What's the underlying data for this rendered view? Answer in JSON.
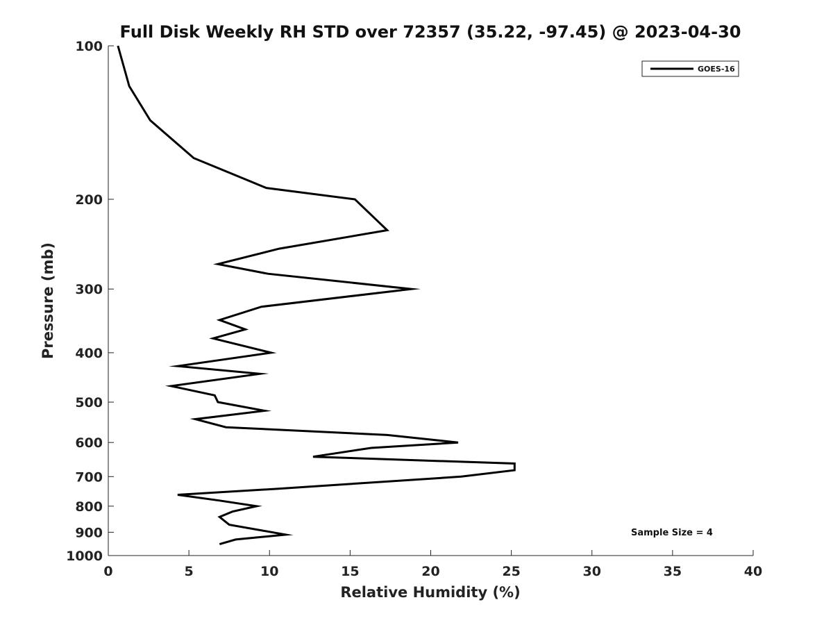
{
  "chart_data": {
    "type": "line",
    "title": "Full Disk Weekly RH STD over 72357 (35.22, -97.45) @ 2023-04-30",
    "xlabel": "Relative Humidity (%)",
    "ylabel": "Pressure (mb)",
    "xlim": [
      0,
      40
    ],
    "ylim": [
      1000,
      100
    ],
    "yscale": "log",
    "xticks": [
      0,
      5,
      10,
      15,
      20,
      25,
      30,
      35,
      40
    ],
    "yticks": [
      100,
      200,
      300,
      400,
      500,
      600,
      700,
      800,
      900,
      1000
    ],
    "grid": false,
    "legend_position": "top-right",
    "annotation": "Sample Size = 4",
    "series": [
      {
        "name": "GOES-16",
        "color": "#000000",
        "points": [
          [
            0.6,
            100
          ],
          [
            1.3,
            120
          ],
          [
            2.6,
            140
          ],
          [
            5.3,
            166
          ],
          [
            9.8,
            190
          ],
          [
            15.3,
            200
          ],
          [
            17.3,
            230
          ],
          [
            10.6,
            250
          ],
          [
            6.8,
            268
          ],
          [
            9.9,
            280
          ],
          [
            18.8,
            300
          ],
          [
            9.5,
            325
          ],
          [
            6.9,
            345
          ],
          [
            8.5,
            360
          ],
          [
            6.5,
            375
          ],
          [
            10.1,
            400
          ],
          [
            4.3,
            425
          ],
          [
            9.4,
            440
          ],
          [
            3.9,
            465
          ],
          [
            6.6,
            485
          ],
          [
            6.8,
            500
          ],
          [
            9.7,
            520
          ],
          [
            5.4,
            540
          ],
          [
            7.3,
            560
          ],
          [
            17.3,
            580
          ],
          [
            21.7,
            600
          ],
          [
            16.3,
            615
          ],
          [
            12.7,
            640
          ],
          [
            25.2,
            660
          ],
          [
            25.2,
            680
          ],
          [
            21.9,
            700
          ],
          [
            10.4,
            740
          ],
          [
            4.3,
            760
          ],
          [
            6.9,
            780
          ],
          [
            9.2,
            800
          ],
          [
            7.7,
            820
          ],
          [
            6.9,
            840
          ],
          [
            7.5,
            870
          ],
          [
            11.0,
            910
          ],
          [
            7.9,
            930
          ],
          [
            6.9,
            950
          ]
        ]
      }
    ]
  }
}
